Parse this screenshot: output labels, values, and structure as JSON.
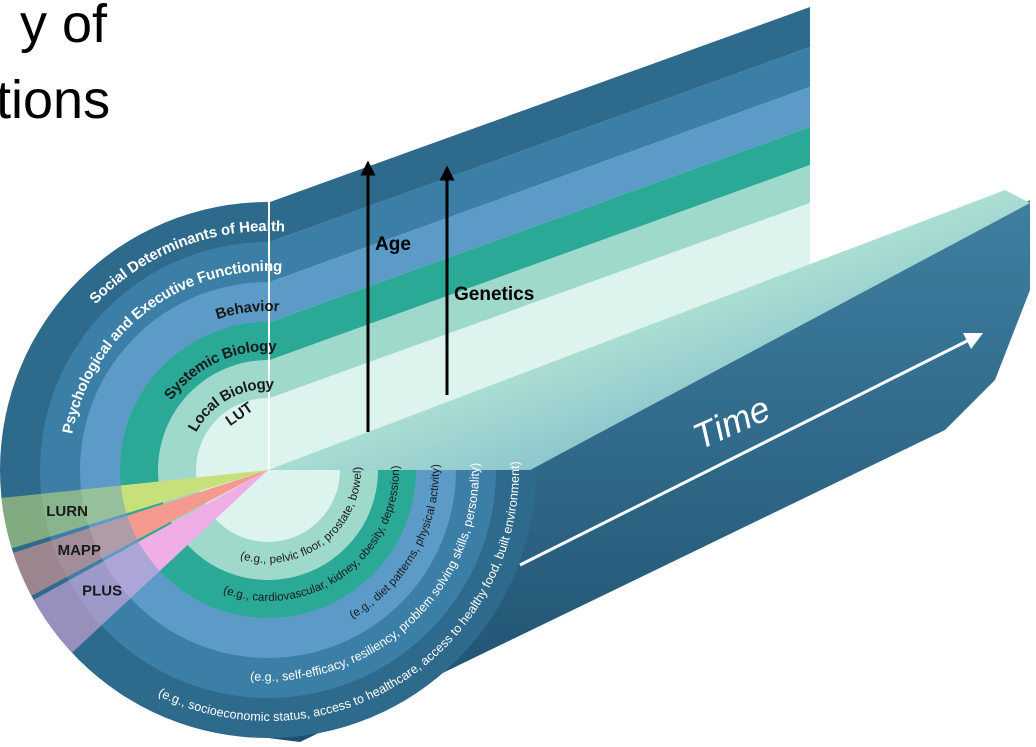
{
  "title_fragment": [
    "y of",
    "tions"
  ],
  "rings": [
    {
      "label": "Social Determinants of Health",
      "example": "(e.g., socioeconomic status, access to healthcare, access to healthy food, built environment)"
    },
    {
      "label": "Psychological and Executive Functioning",
      "example": "(e.g., self-efficacy, resiliency, problem solving skills, personality)"
    },
    {
      "label": "Behavior",
      "example": "(e.g., diet patterns, physical activity)"
    },
    {
      "label": "Systemic Biology",
      "example": "(e.g., cardiovascular, kidney, obesity, depression)"
    },
    {
      "label": "Local Biology",
      "example": "(e.g., pelvic floor, prostate, bowel)"
    },
    {
      "label": "LUT"
    }
  ],
  "arrows": [
    "Age",
    "Genetics"
  ],
  "axis": "Time",
  "studies": [
    "LURN",
    "MAPP",
    "PLUS"
  ]
}
